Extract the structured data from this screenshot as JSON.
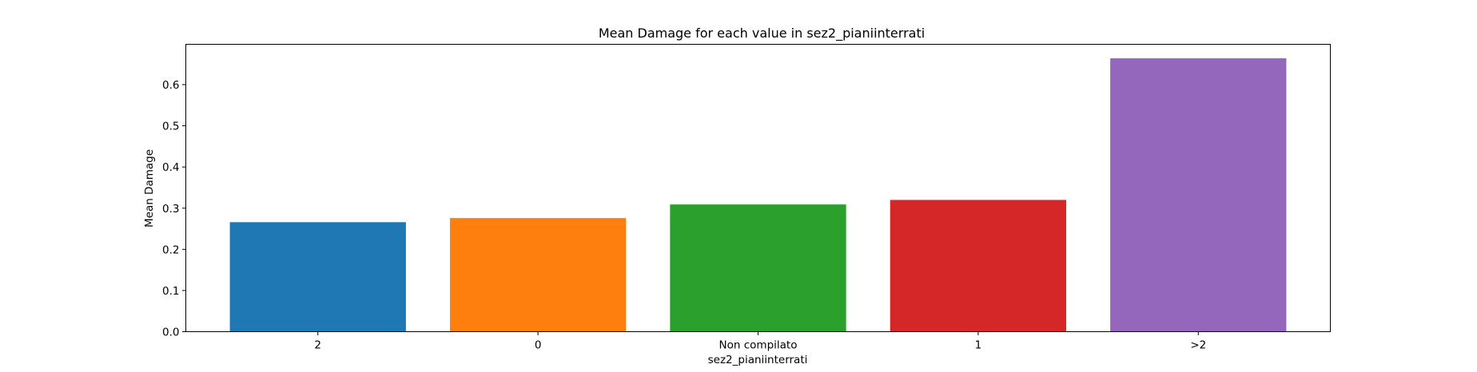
{
  "chart_data": {
    "type": "bar",
    "title": "Mean Damage for each value in sez2_pianiinterrati",
    "xlabel": "sez2_pianiinterrati",
    "ylabel": "Mean Damage",
    "categories": [
      "2",
      "0",
      "Non compilato",
      "1",
      ">2"
    ],
    "values": [
      0.266,
      0.276,
      0.309,
      0.32,
      0.664
    ],
    "colors": [
      "#1f77b4",
      "#ff7f0e",
      "#2ca02c",
      "#d62728",
      "#9467bd"
    ],
    "ylim": [
      0,
      0.698
    ],
    "yticks": [
      0.0,
      0.1,
      0.2,
      0.3,
      0.4,
      0.5,
      0.6
    ],
    "ytick_labels": [
      "0.0",
      "0.1",
      "0.2",
      "0.3",
      "0.4",
      "0.5",
      "0.6"
    ],
    "grid": false,
    "legend": false
  }
}
